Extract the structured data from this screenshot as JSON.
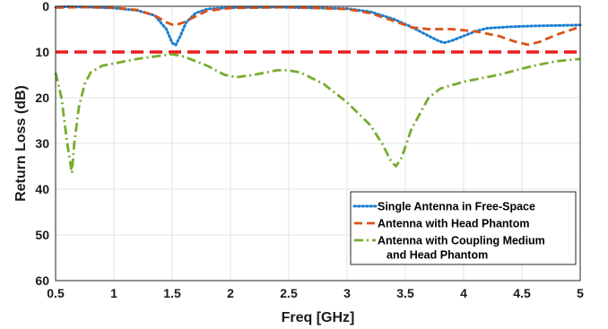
{
  "chart_data": {
    "type": "line",
    "xlabel": "Freq [GHz]",
    "ylabel": "Return Loss (dB)",
    "xlim": [
      0.5,
      5
    ],
    "ylim": [
      0,
      60
    ],
    "y_reversed": true,
    "grid": true,
    "legend_placement": "bottom-right",
    "xticks": [
      0.5,
      1,
      1.5,
      2,
      2.5,
      3,
      3.5,
      4,
      4.5,
      5
    ],
    "xtick_labels": [
      "0.5",
      "1",
      "1.5",
      "2",
      "2.5",
      "3",
      "3.5",
      "4",
      "4.5",
      "5"
    ],
    "yticks": [
      0,
      10,
      20,
      30,
      40,
      50,
      60
    ],
    "ytick_labels": [
      "0",
      "10",
      "20",
      "30",
      "40",
      "50",
      "60"
    ],
    "reference_line": {
      "y": 10,
      "color": "#ee1c1c"
    },
    "series": [
      {
        "name": "Single Antenna in Free-Space",
        "color": "#1a7fd0",
        "style": "dotted",
        "x": [
          0.5,
          0.6,
          0.8,
          1.0,
          1.2,
          1.35,
          1.45,
          1.5,
          1.53,
          1.57,
          1.62,
          1.7,
          1.8,
          2.0,
          2.4,
          3.0,
          3.2,
          3.4,
          3.55,
          3.7,
          3.78,
          3.83,
          3.9,
          4.0,
          4.1,
          4.2,
          4.4,
          4.6,
          4.8,
          5.0
        ],
        "y": [
          0.2,
          0.1,
          0.2,
          0.4,
          0.9,
          2.0,
          5.0,
          8.0,
          8.5,
          6.5,
          3.5,
          1.5,
          0.6,
          0.3,
          0.2,
          0.5,
          1.2,
          2.8,
          4.5,
          6.5,
          7.5,
          8.0,
          7.5,
          6.5,
          5.5,
          4.8,
          4.5,
          4.3,
          4.2,
          4.1
        ]
      },
      {
        "name": "Antenna with Head Phantom",
        "color": "#d95319",
        "style": "dashed",
        "x": [
          0.5,
          0.7,
          1.0,
          1.2,
          1.35,
          1.45,
          1.52,
          1.6,
          1.7,
          1.8,
          2.0,
          2.5,
          3.0,
          3.2,
          3.4,
          3.55,
          3.7,
          3.9,
          4.1,
          4.3,
          4.45,
          4.55,
          4.65,
          4.8,
          5.0
        ],
        "y": [
          0.3,
          0.2,
          0.3,
          0.8,
          2.0,
          3.5,
          4.2,
          3.5,
          2.2,
          1.0,
          0.4,
          0.2,
          0.6,
          1.5,
          3.2,
          4.6,
          5.0,
          5.0,
          5.5,
          6.5,
          7.8,
          8.4,
          7.8,
          6.2,
          4.5
        ]
      },
      {
        "name": "Antenna with Coupling Medium\nand Head Phantom",
        "color": "#77ac30",
        "style": "dash-dot",
        "x": [
          0.5,
          0.55,
          0.6,
          0.64,
          0.66,
          0.7,
          0.75,
          0.8,
          0.9,
          1.0,
          1.2,
          1.4,
          1.5,
          1.6,
          1.8,
          1.95,
          2.05,
          2.2,
          2.4,
          2.5,
          2.6,
          2.8,
          3.0,
          3.2,
          3.3,
          3.38,
          3.42,
          3.47,
          3.55,
          3.7,
          3.8,
          4.0,
          4.3,
          4.6,
          4.8,
          5.0
        ],
        "y": [
          14.5,
          20,
          30,
          36.5,
          30,
          22,
          17,
          14.5,
          13,
          12.5,
          11.5,
          10.8,
          10.5,
          11,
          13,
          15,
          15.5,
          15,
          14,
          14,
          14.5,
          17,
          21,
          26,
          30,
          34,
          35,
          33,
          27,
          20,
          18,
          16.5,
          15,
          13,
          12,
          11.5
        ]
      }
    ]
  }
}
